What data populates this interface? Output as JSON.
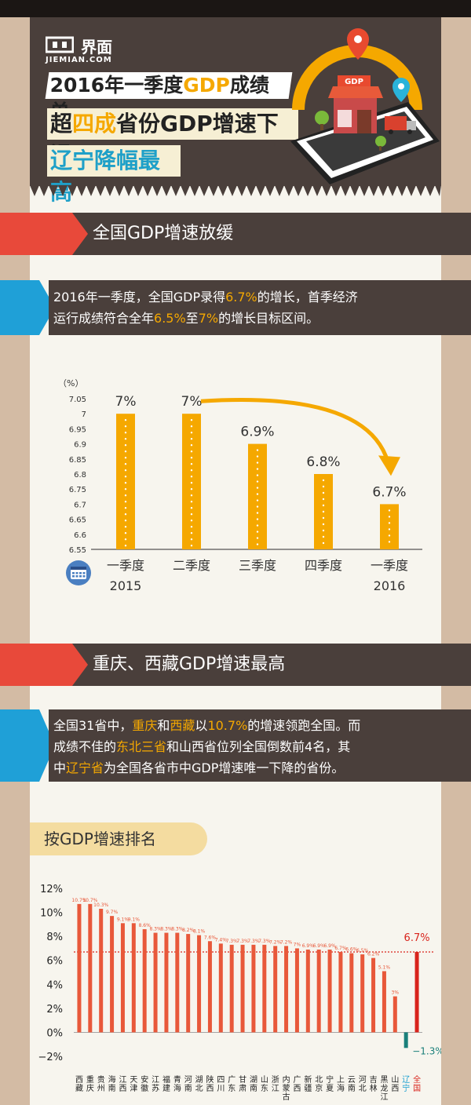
{
  "header": {
    "brand_name": "界面",
    "brand_sub": "JIEMIAN.COM",
    "title_line1_a": "2016年一季度",
    "title_line1_b": "GDP",
    "title_line1_c": "成绩单",
    "title_line2_a": "超",
    "title_line2_b": "四成",
    "title_line2_c": "省份GDP增速下滑",
    "title_line3": "辽宁降幅最高",
    "shop_sign": "GDP"
  },
  "section1": {
    "banner": "全国GDP增速放缓",
    "desc_line1_a": "2016年一季度，全国GDP录得",
    "desc_line1_b": "6.7%",
    "desc_line1_c": "的增长，首季经济",
    "desc_line2_a": "运行成绩符合全年",
    "desc_line2_b": "6.5%",
    "desc_line2_c": "至",
    "desc_line2_d": "7%",
    "desc_line2_e": "的增长目标区间。"
  },
  "section2": {
    "banner": "重庆、西藏GDP增速最高",
    "desc_line1_a": "全国31省中，",
    "desc_line1_b": "重庆",
    "desc_line1_c": "和",
    "desc_line1_d": "西藏",
    "desc_line1_e": "以",
    "desc_line1_f": "10.7%",
    "desc_line1_g": "的增速领跑全国。而",
    "desc_line2_a": "成绩不佳的",
    "desc_line2_b": "东北三省",
    "desc_line2_c": "和山西省位列全国倒数前4名，其",
    "desc_line3_a": "中",
    "desc_line3_b": "辽宁省",
    "desc_line3_c": "为全国各省市中GDP增速唯一下降的省份。",
    "ranking_label": "按GDP增速排名"
  },
  "colors": {
    "dark": "#4a3f3b",
    "orange": "#f5a800",
    "red_bar": "#e8583a",
    "national_bar": "#d9241c",
    "negative_bar": "#1a7f7a",
    "blue": "#1fa0d7"
  },
  "chart_data": [
    {
      "type": "bar",
      "unit_label": "（%）",
      "categories": [
        "一季度",
        "二季度",
        "三季度",
        "四季度",
        "一季度"
      ],
      "year_labels": [
        "2015",
        "",
        "",
        "",
        "2016"
      ],
      "values": [
        7.0,
        7.0,
        6.9,
        6.8,
        6.7
      ],
      "value_labels": [
        "7%",
        "7%",
        "6.9%",
        "6.8%",
        "6.7%"
      ],
      "yticks": [
        "6.55",
        "6.6",
        "6.65",
        "6.7",
        "6.75",
        "6.8",
        "6.85",
        "6.9",
        "6.95",
        "7",
        "7.05"
      ],
      "ylim": [
        6.55,
        7.05
      ],
      "bar_color": "#f5a800",
      "annotation": "downward trend arrow",
      "icon": "calendar-icon"
    },
    {
      "type": "bar",
      "yticks": [
        "−2%",
        "0%",
        "2%",
        "4%",
        "6%",
        "8%",
        "10%",
        "12%"
      ],
      "ylim": [
        -2,
        12
      ],
      "categories": [
        "西藏",
        "重庆",
        "贵州",
        "海南",
        "江西",
        "天津",
        "安徽",
        "江苏",
        "福建",
        "青海",
        "河南",
        "湖北",
        "陕西",
        "四川",
        "广东",
        "甘肃",
        "湖南",
        "山东",
        "浙江",
        "内蒙古",
        "广西",
        "新疆",
        "北京",
        "宁夏",
        "上海",
        "云南",
        "河北",
        "吉林",
        "黑龙江",
        "山西",
        "辽宁",
        "全国"
      ],
      "values": [
        10.7,
        10.7,
        10.3,
        9.7,
        9.1,
        9.1,
        8.6,
        8.3,
        8.3,
        8.3,
        8.2,
        8.1,
        7.6,
        7.4,
        7.3,
        7.3,
        7.3,
        7.3,
        7.2,
        7.2,
        7.0,
        6.9,
        6.9,
        6.9,
        6.7,
        6.6,
        6.5,
        6.2,
        5.1,
        3.0,
        -1.3,
        6.7
      ],
      "value_labels": [
        "10.7%",
        "10.7%",
        "10.3%",
        "9.7%",
        "9.1%",
        "9.1%",
        "8.6%",
        "8.3%",
        "8.3%",
        "8.3%",
        "8.2%",
        "8.1%",
        "7.6%",
        "7.4%",
        "7.3%",
        "7.3%",
        "7.3%",
        "7.3%",
        "7.2%",
        "7.2%",
        "7%",
        "6.9%",
        "6.9%",
        "6.9%",
        "6.7%",
        "6.6%",
        "6.5%",
        "6.2%",
        "5.1%",
        "3%",
        "−1.3%",
        "6.7%"
      ],
      "reference_line": 6.7,
      "reference_label": "6.7%",
      "highlight": {
        "辽宁": "#1a7f7a",
        "全国": "#d9241c"
      }
    }
  ]
}
